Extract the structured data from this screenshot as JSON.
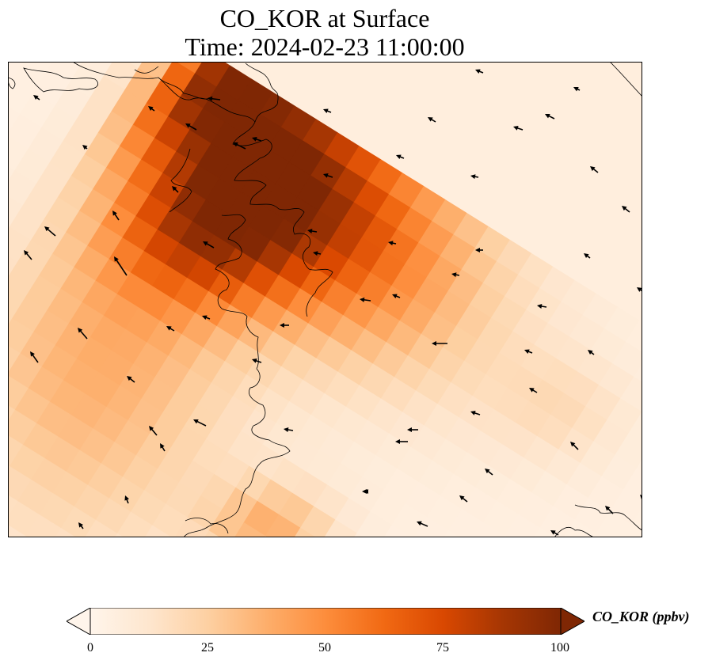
{
  "title_line1": "CO_KOR at Surface",
  "title_line2": "Time: 2024-02-23 11:00:00",
  "colorbar": {
    "label": "CO_KOR (ppbv)",
    "ticks": [
      "0",
      "25",
      "50",
      "75",
      "100"
    ],
    "min": 0,
    "max": 100,
    "extend": "both",
    "colormap": [
      "#fff5eb",
      "#fee6ce",
      "#fdd0a2",
      "#fdae6b",
      "#fd8d3c",
      "#f16913",
      "#d94801",
      "#a63603",
      "#7f2704"
    ]
  },
  "chart_data": {
    "type": "heatmap",
    "title": "CO_KOR at Surface",
    "subtitle": "Time: 2024-02-23 11:00:00",
    "variable": "CO_KOR",
    "units": "ppbv",
    "value_range": [
      0,
      100
    ],
    "plume": "high concentrations (up to ~100 ppbv) over the upper-left coastal region, decaying toward the south-west; low values (<20 ppbv) over most of the right half",
    "overlays": [
      "coastlines",
      "wind vectors"
    ]
  }
}
